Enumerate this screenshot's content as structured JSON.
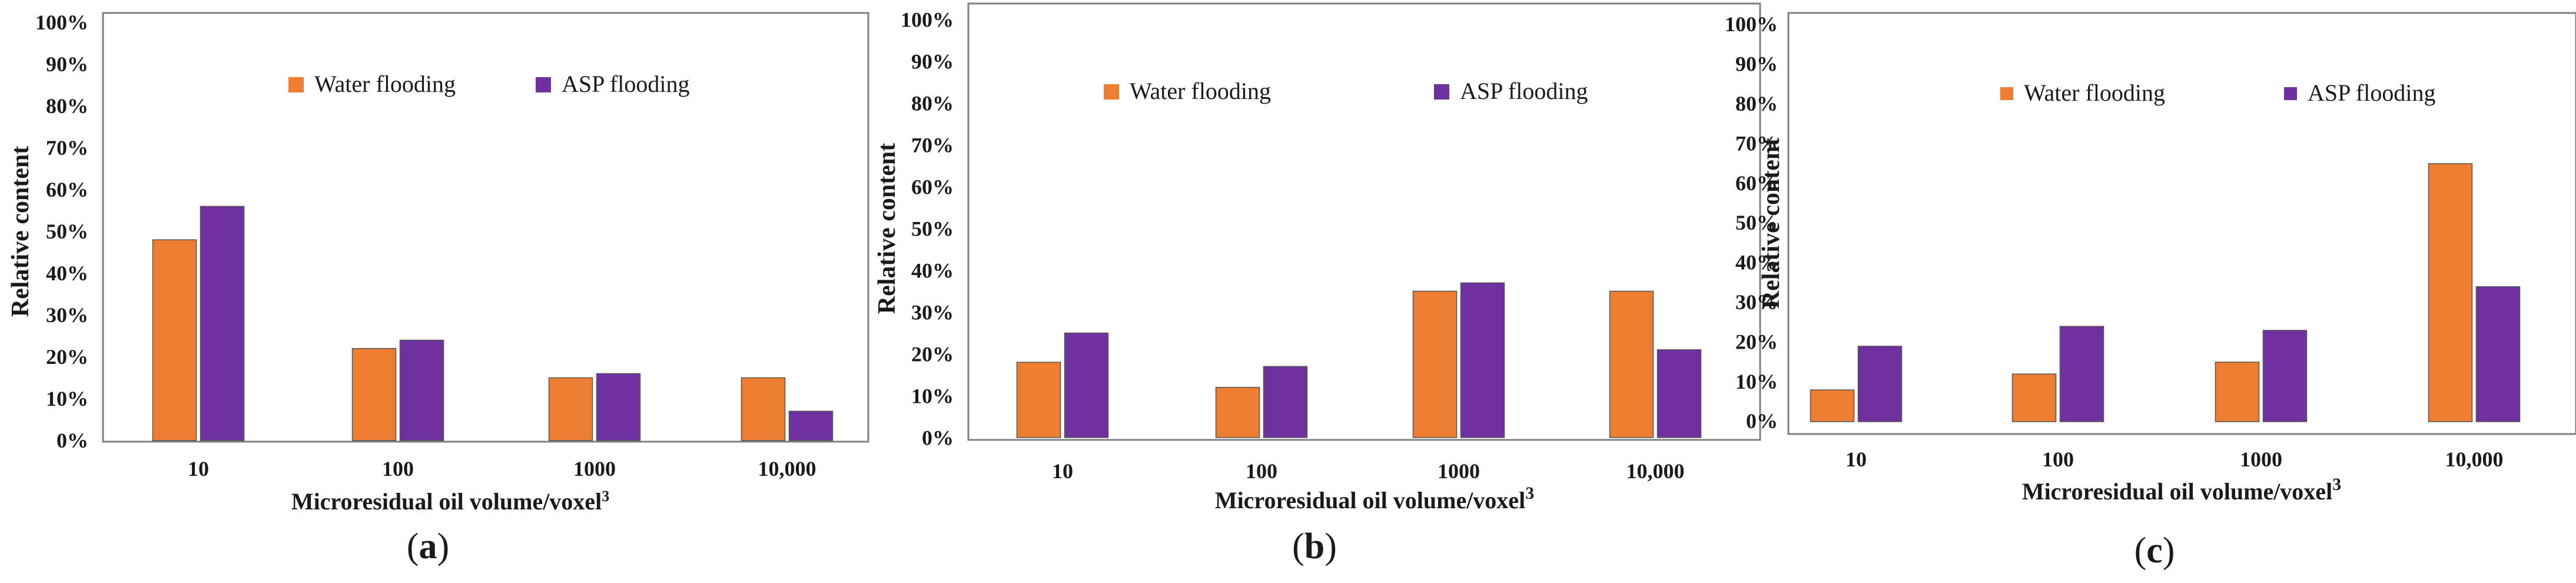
{
  "chart_data": [
    {
      "type": "bar",
      "panel_label": "a",
      "categories": [
        "10",
        "100",
        "1000",
        "10,000"
      ],
      "series": [
        {
          "name": "Water flooding",
          "values": [
            48,
            22,
            15,
            15
          ],
          "color": "#ED7D31"
        },
        {
          "name": "ASP flooding",
          "values": [
            56,
            24,
            16,
            7
          ],
          "color": "#7030A0"
        }
      ],
      "ylabel": "Relative content",
      "xlabel": "Microresidual oil volume/voxel",
      "xlabel_sup": "3",
      "ylim": [
        0,
        100
      ],
      "yticks": [
        "0%",
        "10%",
        "20%",
        "30%",
        "40%",
        "50%",
        "60%",
        "70%",
        "80%",
        "90%",
        "100%"
      ],
      "legend": "top-center",
      "grid": false
    },
    {
      "type": "bar",
      "panel_label": "b",
      "categories": [
        "10",
        "100",
        "1000",
        "10,000"
      ],
      "series": [
        {
          "name": "Water flooding",
          "values": [
            18,
            12,
            35,
            35
          ],
          "color": "#ED7D31"
        },
        {
          "name": "ASP flooding",
          "values": [
            25,
            17,
            37,
            21
          ],
          "color": "#7030A0"
        }
      ],
      "ylabel": "Relative content",
      "xlabel": "Microresidual oil volume/voxel",
      "xlabel_sup": "3",
      "ylim": [
        0,
        100
      ],
      "yticks": [
        "0%",
        "10%",
        "20%",
        "30%",
        "40%",
        "50%",
        "60%",
        "70%",
        "80%",
        "90%",
        "100%"
      ],
      "legend": "top-center",
      "grid": false
    },
    {
      "type": "bar",
      "panel_label": "c",
      "categories": [
        "10",
        "100",
        "1000",
        "10,000"
      ],
      "series": [
        {
          "name": "Water flooding",
          "values": [
            8,
            12,
            15,
            65
          ],
          "color": "#ED7D31"
        },
        {
          "name": "ASP flooding",
          "values": [
            19,
            24,
            23,
            34
          ],
          "color": "#7030A0"
        }
      ],
      "ylabel": "Relative content",
      "xlabel": "Microresidual oil volume/voxel",
      "xlabel_sup": "3",
      "ylim": [
        0,
        100
      ],
      "yticks": [
        "0%",
        "10%",
        "20%",
        "30%",
        "40%",
        "50%",
        "60%",
        "70%",
        "80%",
        "90%",
        "100%"
      ],
      "legend": "top-center",
      "grid": false
    }
  ]
}
